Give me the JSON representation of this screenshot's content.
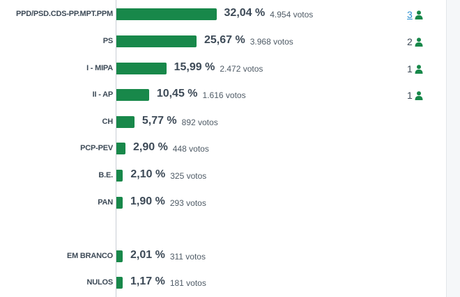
{
  "results": [
    {
      "party": "PPD/PSD.CDS-PP.MPT.PPM",
      "percent": "32,04 %",
      "votes": "4.954 votos",
      "share": 32.04,
      "seats": "3",
      "seats_link": true
    },
    {
      "party": "PS",
      "percent": "25,67 %",
      "votes": "3.968 votos",
      "share": 25.67,
      "seats": "2",
      "seats_link": false
    },
    {
      "party": "I - MIPA",
      "percent": "15,99 %",
      "votes": "2.472 votos",
      "share": 15.99,
      "seats": "1",
      "seats_link": false
    },
    {
      "party": "II - AP",
      "percent": "10,45 %",
      "votes": "1.616 votos",
      "share": 10.45,
      "seats": "1",
      "seats_link": false
    },
    {
      "party": "CH",
      "percent": "5,77 %",
      "votes": "892 votos",
      "share": 5.77,
      "seats": null
    },
    {
      "party": "PCP-PEV",
      "percent": "2,90 %",
      "votes": "448 votos",
      "share": 2.9,
      "seats": null
    },
    {
      "party": "B.E.",
      "percent": "2,10 %",
      "votes": "325 votos",
      "share": 2.1,
      "seats": null
    },
    {
      "party": "PAN",
      "percent": "1,90 %",
      "votes": "293 votos",
      "share": 1.9,
      "seats": null
    }
  ],
  "other": [
    {
      "party": "EM BRANCO",
      "percent": "2,01 %",
      "votes": "311 votos",
      "share": 2.01
    },
    {
      "party": "NULOS",
      "percent": "1,17 %",
      "votes": "181 votos",
      "share": 1.17
    }
  ],
  "icons": {
    "seat": "person-icon"
  },
  "colors": {
    "bar": "#18884a",
    "seat_icon": "#18884a",
    "seat_link": "#2a8fd0"
  }
}
